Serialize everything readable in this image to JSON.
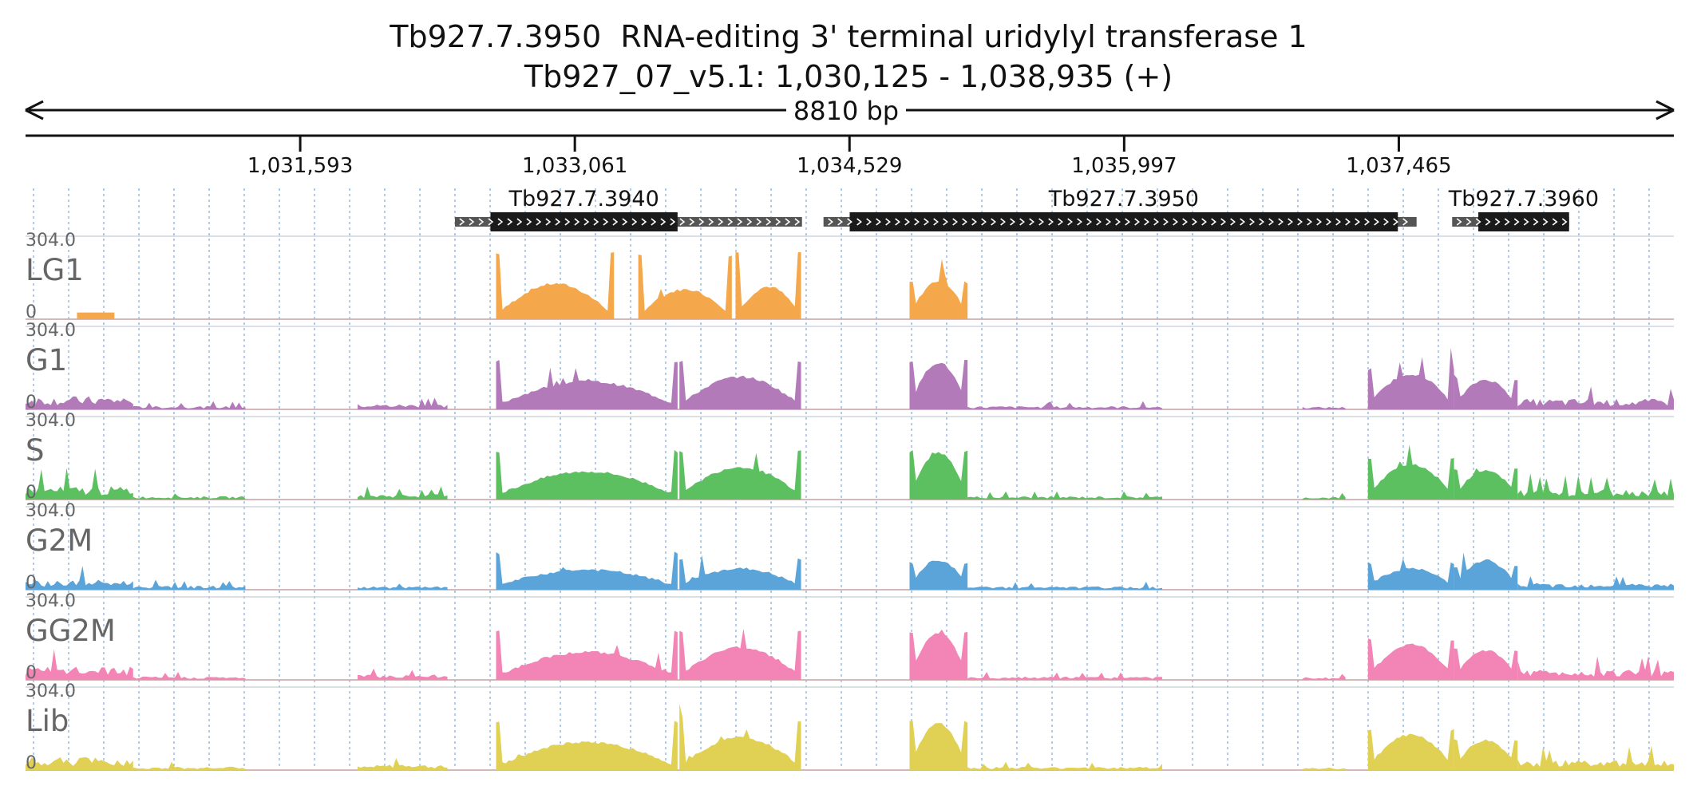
{
  "chart_data": {
    "type": "area",
    "title": "Tb927.7.3950  RNA-editing 3' terminal uridylyl transferase 1",
    "subtitle": "Tb927_07_v5.1: 1,030,125 - 1,038,935 (+)",
    "span_label": "8810 bp",
    "x_range": [
      1030125,
      1038935
    ],
    "x_ticks": [
      1031593,
      1033061,
      1034529,
      1035997,
      1037465
    ],
    "x_tick_labels": [
      "1,031,593",
      "1,033,061",
      "1,034,529",
      "1,035,997",
      "1,037,465"
    ],
    "ylim": [
      0,
      304.0
    ],
    "y_max_label": "304.0",
    "y_min_label": "0",
    "genes": [
      {
        "name": "Tb927.7.3940",
        "start": 1032420,
        "end": 1034275,
        "cds_start": 1032610,
        "cds_end": 1033610
      },
      {
        "name": "Tb927.7.3950",
        "start": 1034390,
        "end": 1037560,
        "cds_start": 1034530,
        "cds_end": 1037460
      },
      {
        "name": "Tb927.7.3960",
        "start": 1037750,
        "end": 1038375,
        "cds_start": 1037890,
        "cds_end": 1038375
      }
    ],
    "series": [
      {
        "name": "LG1",
        "color": "#f5a84b",
        "profile": "lg1"
      },
      {
        "name": "G1",
        "color": "#b27ab9",
        "profile": "g1"
      },
      {
        "name": "S",
        "color": "#5cbf60",
        "profile": "g1"
      },
      {
        "name": "G2M",
        "color": "#5aa4da",
        "profile": "low"
      },
      {
        "name": "GG2M",
        "color": "#f285b5",
        "profile": "g1"
      },
      {
        "name": "Lib",
        "color": "#e0d155",
        "profile": "g1"
      }
    ],
    "grid": true
  }
}
